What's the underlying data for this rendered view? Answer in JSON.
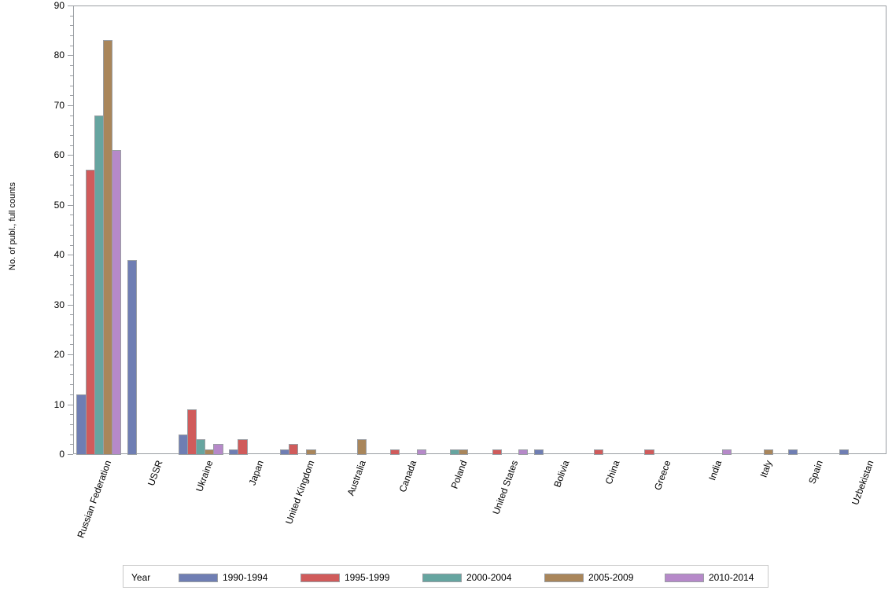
{
  "chart_data": {
    "type": "bar",
    "title": "",
    "xlabel": "",
    "ylabel": "No. of publ., full counts",
    "ylim": [
      0,
      90
    ],
    "yticks": [
      0,
      10,
      20,
      30,
      40,
      50,
      60,
      70,
      80,
      90
    ],
    "grid": false,
    "legend_position": "bottom",
    "legend_title": "Year",
    "categories": [
      "Russian Federation",
      "USSR",
      "Ukraine",
      "Japan",
      "United Kingdom",
      "Australia",
      "Canada",
      "Poland",
      "United States",
      "Bolivia",
      "China",
      "Greece",
      "India",
      "Italy",
      "Spain",
      "Uzbekistan"
    ],
    "series": [
      {
        "name": "1990-1994",
        "color": "#6f7eb3",
        "values": [
          12,
          39,
          4,
          1,
          1,
          0,
          0,
          0,
          0,
          1,
          0,
          0,
          0,
          0,
          1,
          1
        ]
      },
      {
        "name": "1995-1999",
        "color": "#d05b5b",
        "values": [
          57,
          0,
          9,
          3,
          2,
          0,
          1,
          0,
          1,
          0,
          1,
          1,
          0,
          0,
          0,
          0
        ]
      },
      {
        "name": "2000-2004",
        "color": "#66a5a0",
        "values": [
          68,
          0,
          3,
          0,
          0,
          0,
          0,
          1,
          0,
          0,
          0,
          0,
          0,
          0,
          0,
          0
        ]
      },
      {
        "name": "2005-2009",
        "color": "#a9865b",
        "values": [
          83,
          0,
          1,
          0,
          1,
          3,
          0,
          1,
          0,
          0,
          0,
          0,
          0,
          1,
          0,
          0
        ]
      },
      {
        "name": "2010-2014",
        "color": "#b689c9",
        "values": [
          61,
          0,
          2,
          0,
          0,
          0,
          1,
          0,
          1,
          0,
          0,
          0,
          1,
          0,
          0,
          0
        ]
      }
    ]
  }
}
